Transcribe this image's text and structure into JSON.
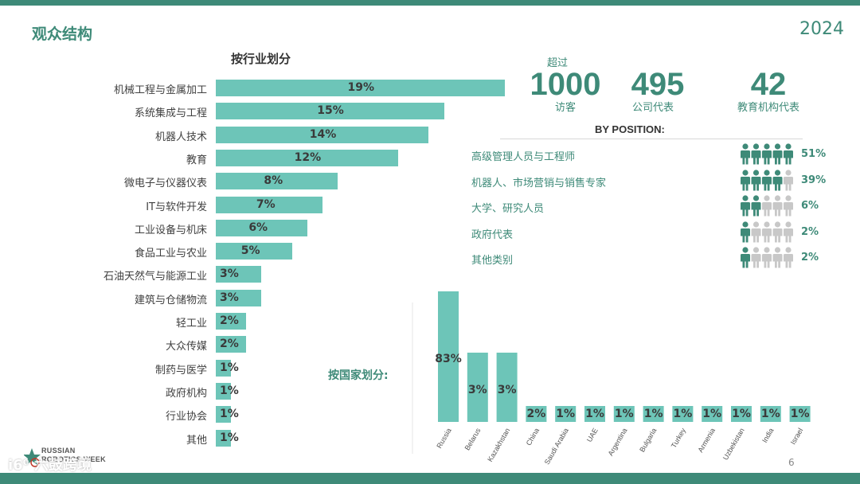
{
  "header": {
    "title": "观众结构",
    "year": "2024"
  },
  "colors": {
    "accent": "#3e8a78",
    "bar": "#6dc5b8",
    "icon_off": "#c8c8c8"
  },
  "industry_title": "按行业划分",
  "stats": [
    {
      "prefix": "超过",
      "number": "1000",
      "label": "访客"
    },
    {
      "prefix": "",
      "number": "495",
      "label": "公司代表"
    },
    {
      "prefix": "",
      "number": "42",
      "label": "教育机构代表"
    }
  ],
  "position_title": "BY POSITION:",
  "positions": [
    {
      "label": "高级管理人员与工程师",
      "pct": "51%",
      "icons_filled": 5
    },
    {
      "label": "机器人、市场营销与销售专家",
      "pct": "39%",
      "icons_filled": 4
    },
    {
      "label": "大学、研究人员",
      "pct": "6%",
      "icons_filled": 2
    },
    {
      "label": "政府代表",
      "pct": "2%",
      "icons_filled": 1
    },
    {
      "label": "其他类别",
      "pct": "2%",
      "icons_filled": 1
    }
  ],
  "country_title": "按国家划分:",
  "footer": {
    "logo_line1": "RUSSIAN",
    "logo_line2": "ROBOTICS WEEK",
    "page_number": "6",
    "watermark": "i6⁰ 六鼓跨境"
  },
  "chart_data": [
    {
      "type": "bar",
      "orientation": "horizontal",
      "title": "按行业划分",
      "categories": [
        "机械工程与金属加工",
        "系统集成与工程",
        "机器人技术",
        "教育",
        "微电子与仪器仪表",
        "IT与软件开发",
        "工业设备与机床",
        "食品工业与农业",
        "石油天然气与能源工业",
        "建筑与仓储物流",
        "轻工业",
        "大众传媒",
        "制药与医学",
        "政府机构",
        "行业协会",
        "其他"
      ],
      "values": [
        19,
        15,
        14,
        12,
        8,
        7,
        6,
        5,
        3,
        3,
        2,
        2,
        1,
        1,
        1,
        1
      ],
      "labels": [
        "19%",
        "15%",
        "14%",
        "12%",
        "8%",
        "7%",
        "6%",
        "5%",
        "3%",
        "3%",
        "2%",
        "2%",
        "1%",
        "1%",
        "1%",
        "1%"
      ],
      "unit": "%"
    },
    {
      "type": "bar",
      "orientation": "vertical",
      "title": "按国家划分:",
      "categories": [
        "Russia",
        "Belarus",
        "Kazakhstan",
        "China",
        "Saudi Arabia",
        "UAE",
        "Argentina",
        "Bulgaria",
        "Turkey",
        "Armenia",
        "Uzbekistan",
        "India",
        "Israel"
      ],
      "values": [
        83,
        3,
        3,
        2,
        1,
        1,
        1,
        1,
        1,
        1,
        1,
        1,
        1
      ],
      "labels": [
        "83%",
        "3%",
        "3%",
        "2%",
        "1%",
        "1%",
        "1%",
        "1%",
        "1%",
        "1%",
        "1%",
        "1%",
        "1%"
      ],
      "unit": "%",
      "note": "axis broken: bars not drawn to scale"
    }
  ]
}
